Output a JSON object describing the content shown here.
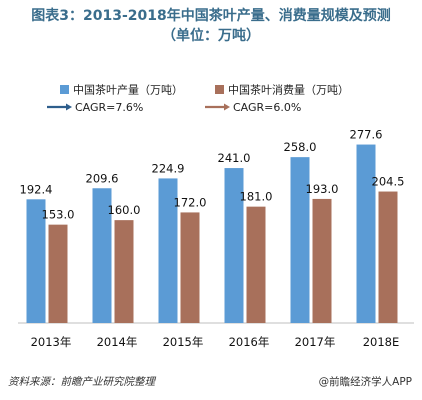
{
  "title": {
    "line1": "图表3：2013-2018年中国茶叶产量、消费量规模及预测",
    "line2": "（单位：万吨）"
  },
  "legend": {
    "series1": "中国茶叶产量（万吨）",
    "series2": "中国茶叶消费量（万吨）",
    "cagr1": "CAGR=7.6%",
    "cagr2": "CAGR=6.0%"
  },
  "footer": {
    "source": "资料来源：前瞻产业研究院整理",
    "credit": "@前瞻经济学人APP"
  },
  "colors": {
    "series1": "#5b9bd5",
    "series2": "#a8705b",
    "cagr1_arrow": "#2e5e8c",
    "cagr2_arrow": "#a8705b",
    "title": "#3a6d8c"
  },
  "chart_data": {
    "type": "bar",
    "categories": [
      "2013年",
      "2014年",
      "2015年",
      "2016年",
      "2017年",
      "2018E"
    ],
    "series": [
      {
        "name": "中国茶叶产量（万吨）",
        "values": [
          192.4,
          209.6,
          224.9,
          241.0,
          258.0,
          277.6
        ]
      },
      {
        "name": "中国茶叶消费量（万吨）",
        "values": [
          153.0,
          160.0,
          172.0,
          181.0,
          193.0,
          204.5
        ]
      }
    ],
    "value_labels": [
      [
        "192.4",
        "209.6",
        "224.9",
        "241.0",
        "258.0",
        "277.6"
      ],
      [
        "153.0",
        "160.0",
        "172.0",
        "181.0",
        "193.0",
        "204.5"
      ]
    ],
    "ylim": [
      0,
      280
    ],
    "grid": false,
    "legend_position": "top"
  }
}
